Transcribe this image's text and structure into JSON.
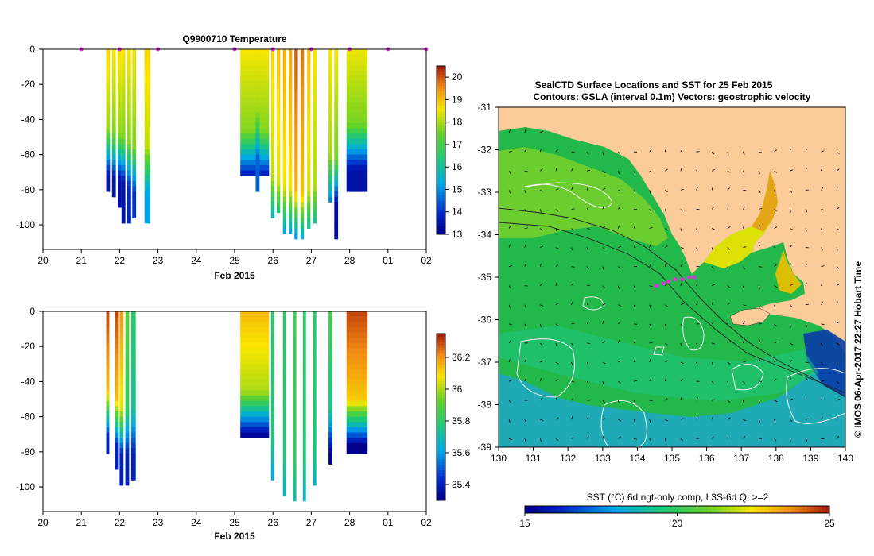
{
  "left_title": "Q9900710  Temperature",
  "month_label": "Feb 2015",
  "map_title_1": "SealCTD Surface Locations and SST for 25 Feb 2015",
  "map_title_2": "Contours: GSLA (interval 0.1m) Vectors: geostrophic velocity",
  "map_side_label": "© IMOS 06-Apr-2017 22:27 Hobart Time",
  "sst_label": "SST (°C) 6d ngt-only comp, L3S-6d QL>=2",
  "colors": {
    "land": "#fbcb9a",
    "marker": "#e62ee6",
    "gsla_contour": "#f2f2f2",
    "bathymetry": "#222222"
  },
  "chart_data": [
    {
      "type": "heatmap",
      "title": "Q9900710  Temperature",
      "xlabel": "Feb 2015",
      "ylabel": "",
      "x_ticks": [
        "20",
        "21",
        "22",
        "23",
        "24",
        "25",
        "26",
        "27",
        "28",
        "01",
        "02"
      ],
      "y_ticks": [
        0,
        -20,
        -40,
        -60,
        -80,
        -100
      ],
      "xlim": [
        20,
        30
      ],
      "ylim": [
        -114,
        0
      ],
      "colorbar": {
        "min": 13,
        "max": 20.5,
        "ticks": [
          13,
          14,
          15,
          16,
          17,
          18,
          19,
          20
        ]
      },
      "profile_markers_x": [
        21,
        22,
        23,
        25,
        26,
        27,
        28,
        29,
        30
      ],
      "profiles": [
        {
          "x": 21.65,
          "w": 0.1,
          "depth": 81,
          "top": 18.8,
          "bottom": 13.5,
          "tc": 45
        },
        {
          "x": 21.8,
          "w": 0.1,
          "depth": 82,
          "top": 18.6,
          "bottom": 13.5,
          "tc": 47
        },
        {
          "x": 21.95,
          "w": 0.1,
          "depth": 89,
          "top": 18.7,
          "bottom": 13.3,
          "tc": 48
        },
        {
          "x": 22.05,
          "w": 0.1,
          "depth": 97,
          "top": 18.6,
          "bottom": 13.4,
          "tc": 50
        },
        {
          "x": 22.2,
          "w": 0.1,
          "depth": 98,
          "top": 18.6,
          "bottom": 13.8,
          "tc": 52
        },
        {
          "x": 22.33,
          "w": 0.1,
          "depth": 95,
          "top": 18.5,
          "bottom": 14.0,
          "tc": 55
        },
        {
          "x": 22.65,
          "w": 0.15,
          "depth": 99,
          "top": 18.8,
          "bottom": 15.2,
          "tc": 55
        },
        {
          "x": 25.15,
          "w": 0.75,
          "depth": 71,
          "top": 18.6,
          "bottom": 13.5,
          "tc": 46
        },
        {
          "x": 25.55,
          "w": 0.1,
          "depth": 81,
          "top": 18.6,
          "bottom": 14.5,
          "tc": 35
        },
        {
          "x": 25.95,
          "w": 0.09,
          "depth": 95,
          "top": 18.8,
          "bottom": 15.2,
          "tc": 72
        },
        {
          "x": 26.1,
          "w": 0.09,
          "depth": 93,
          "top": 19.0,
          "bottom": 15.3,
          "tc": 75
        },
        {
          "x": 26.26,
          "w": 0.09,
          "depth": 105,
          "top": 19.2,
          "bottom": 15.2,
          "tc": 78
        },
        {
          "x": 26.41,
          "w": 0.09,
          "depth": 104,
          "top": 19.3,
          "bottom": 15.2,
          "tc": 78
        },
        {
          "x": 26.56,
          "w": 0.09,
          "depth": 108,
          "top": 20.0,
          "bottom": 15.1,
          "tc": 80
        },
        {
          "x": 26.72,
          "w": 0.09,
          "depth": 107,
          "top": 19.8,
          "bottom": 15.2,
          "tc": 82
        },
        {
          "x": 26.89,
          "w": 0.09,
          "depth": 101,
          "top": 19.0,
          "bottom": 15.4,
          "tc": 80
        },
        {
          "x": 27.05,
          "w": 0.09,
          "depth": 99,
          "top": 18.6,
          "bottom": 15.5,
          "tc": 78
        },
        {
          "x": 27.45,
          "w": 0.1,
          "depth": 87,
          "top": 18.6,
          "bottom": 14.8,
          "tc": 60
        },
        {
          "x": 27.6,
          "w": 0.1,
          "depth": 108,
          "top": 18.5,
          "bottom": 13.3,
          "tc": 62
        },
        {
          "x": 27.92,
          "w": 0.55,
          "depth": 81,
          "top": 18.5,
          "bottom": 13.4,
          "tc": 42
        }
      ]
    },
    {
      "type": "heatmap",
      "title": "",
      "xlabel": "Feb 2015",
      "ylabel": "",
      "x_ticks": [
        "20",
        "21",
        "22",
        "23",
        "24",
        "25",
        "26",
        "27",
        "28",
        "01",
        "02"
      ],
      "y_ticks": [
        0,
        -20,
        -40,
        -60,
        -80,
        -100
      ],
      "xlim": [
        20,
        30
      ],
      "ylim": [
        -114,
        0
      ],
      "colorbar": {
        "min": 35.3,
        "max": 36.35,
        "ticks": [
          35.4,
          35.6,
          35.8,
          36,
          36.2
        ]
      },
      "profiles": [
        {
          "x": 21.65,
          "w": 0.08,
          "depth": 81,
          "top": 36.3,
          "bottom": 35.4,
          "tc": 45
        },
        {
          "x": 21.88,
          "w": 0.1,
          "depth": 89,
          "top": 36.3,
          "bottom": 35.4,
          "tc": 50
        },
        {
          "x": 22.0,
          "w": 0.1,
          "depth": 97,
          "top": 36.2,
          "bottom": 35.4,
          "tc": 55
        },
        {
          "x": 22.15,
          "w": 0.1,
          "depth": 99,
          "top": 35.9,
          "bottom": 35.4,
          "tc": 55
        },
        {
          "x": 22.3,
          "w": 0.12,
          "depth": 95,
          "top": 35.8,
          "bottom": 35.4,
          "tc": 55
        },
        {
          "x": 25.15,
          "w": 0.75,
          "depth": 71,
          "top": 36.15,
          "bottom": 35.3,
          "tc": 45
        },
        {
          "x": 25.95,
          "w": 0.08,
          "depth": 95,
          "top": 35.8,
          "bottom": 35.6,
          "tc": 70
        },
        {
          "x": 26.26,
          "w": 0.08,
          "depth": 105,
          "top": 35.8,
          "bottom": 35.65,
          "tc": 80
        },
        {
          "x": 26.53,
          "w": 0.08,
          "depth": 107,
          "top": 35.85,
          "bottom": 35.7,
          "tc": 82
        },
        {
          "x": 26.78,
          "w": 0.08,
          "depth": 107,
          "top": 35.8,
          "bottom": 35.65,
          "tc": 82
        },
        {
          "x": 27.05,
          "w": 0.08,
          "depth": 99,
          "top": 35.8,
          "bottom": 35.6,
          "tc": 80
        },
        {
          "x": 27.45,
          "w": 0.1,
          "depth": 87,
          "top": 35.85,
          "bottom": 35.3,
          "tc": 55
        },
        {
          "x": 27.92,
          "w": 0.55,
          "depth": 81,
          "top": 36.3,
          "bottom": 35.3,
          "tc": 50
        }
      ]
    },
    {
      "type": "heatmap",
      "title": "SealCTD Surface Locations and SST for 25 Feb 2015",
      "subtitle": "Contours: GSLA (interval 0.1m) Vectors: geostrophic velocity",
      "xlabel": "",
      "ylabel": "",
      "x_ticks": [
        130,
        131,
        132,
        133,
        134,
        135,
        136,
        137,
        138,
        139,
        140
      ],
      "y_ticks": [
        -31,
        -32,
        -33,
        -34,
        -35,
        -36,
        -37,
        -38,
        -39
      ],
      "xlim": [
        130,
        140
      ],
      "ylim": [
        -39,
        -31
      ],
      "colorbar": {
        "label": "SST (°C) 6d ngt-only comp, L3S-6d QL>=2",
        "min": 15,
        "max": 25,
        "ticks": [
          15,
          20,
          25
        ]
      },
      "seal_locations": [
        {
          "lon": 134.9,
          "lat": -35.1
        },
        {
          "lon": 135.1,
          "lat": -35.05
        },
        {
          "lon": 135.3,
          "lat": -35.05
        },
        {
          "lon": 135.5,
          "lat": -35.0
        },
        {
          "lon": 135.65,
          "lat": -35.0
        },
        {
          "lon": 134.55,
          "lat": -35.2
        },
        {
          "lon": 134.75,
          "lat": -35.15
        }
      ]
    }
  ]
}
